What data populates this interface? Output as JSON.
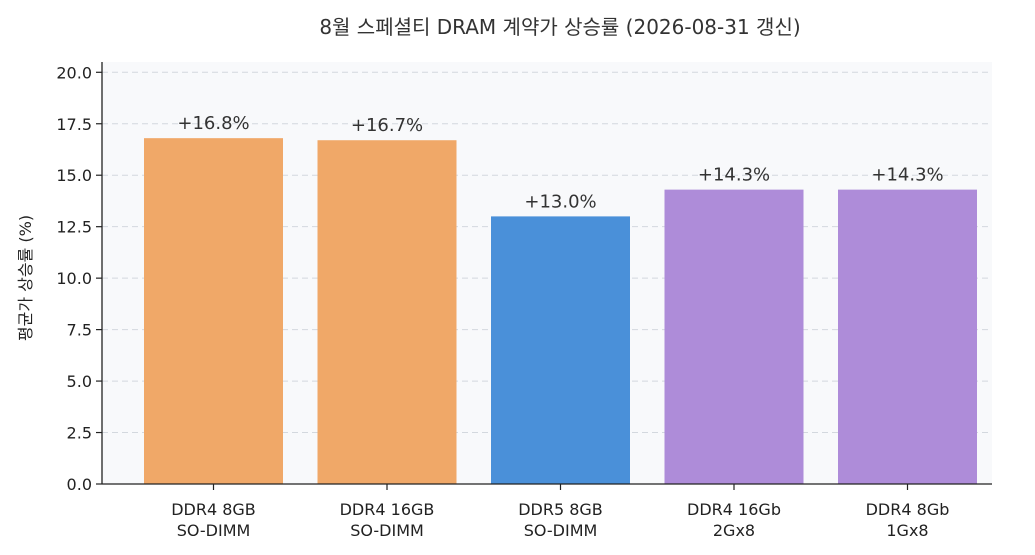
{
  "chart_data": {
    "type": "bar",
    "title": "8월 스페셜티 DRAM 계약가 상승률 (2026-08-31 갱신)",
    "xlabel": "",
    "ylabel": "평균가 상승률 (%)",
    "ylim": [
      0,
      20.5
    ],
    "yticks": [
      "0.0",
      "2.5",
      "5.0",
      "7.5",
      "10.0",
      "12.5",
      "15.0",
      "17.5",
      "20.0"
    ],
    "grid": true,
    "categories": [
      [
        "DDR4 8GB",
        "SO-DIMM"
      ],
      [
        "DDR4 16GB",
        "SO-DIMM"
      ],
      [
        "DDR5 8GB",
        "SO-DIMM"
      ],
      [
        "DDR4 16Gb",
        "2Gx8"
      ],
      [
        "DDR4 8Gb",
        "1Gx8"
      ]
    ],
    "values": [
      16.8,
      16.7,
      13.0,
      14.3,
      14.3
    ],
    "data_labels": [
      "+16.8%",
      "+16.7%",
      "+13.0%",
      "+14.3%",
      "+14.3%"
    ],
    "colors": [
      "#F0A868",
      "#F0A868",
      "#4A90D9",
      "#AE8CD9",
      "#AE8CD9"
    ],
    "plot_background": "#F8F9FB"
  }
}
